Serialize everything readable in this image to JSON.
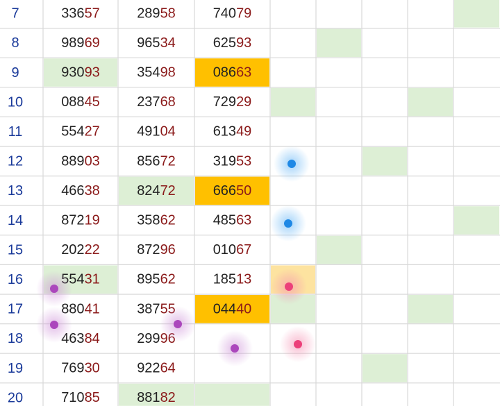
{
  "table": {
    "rows": [
      {
        "n": "7",
        "cells": [
          [
            "336",
            "57"
          ],
          [
            "289",
            "58"
          ],
          [
            "740",
            "79"
          ]
        ]
      },
      {
        "n": "8",
        "cells": [
          [
            "989",
            "69"
          ],
          [
            "965",
            "34"
          ],
          [
            "625",
            "93"
          ]
        ]
      },
      {
        "n": "9",
        "cells": [
          [
            "930",
            "93"
          ],
          [
            "354",
            "98"
          ],
          [
            "086",
            "63"
          ]
        ]
      },
      {
        "n": "10",
        "cells": [
          [
            "088",
            "45"
          ],
          [
            "237",
            "68"
          ],
          [
            "729",
            "29"
          ]
        ]
      },
      {
        "n": "11",
        "cells": [
          [
            "554",
            "27"
          ],
          [
            "491",
            "04"
          ],
          [
            "613",
            "49"
          ]
        ]
      },
      {
        "n": "12",
        "cells": [
          [
            "889",
            "03"
          ],
          [
            "856",
            "72"
          ],
          [
            "319",
            "53"
          ]
        ]
      },
      {
        "n": "13",
        "cells": [
          [
            "466",
            "38"
          ],
          [
            "824",
            "72"
          ],
          [
            "666",
            "50"
          ]
        ]
      },
      {
        "n": "14",
        "cells": [
          [
            "872",
            "19"
          ],
          [
            "358",
            "62"
          ],
          [
            "485",
            "63"
          ]
        ]
      },
      {
        "n": "15",
        "cells": [
          [
            "202",
            "22"
          ],
          [
            "872",
            "96"
          ],
          [
            "010",
            "67"
          ]
        ]
      },
      {
        "n": "16",
        "cells": [
          [
            "554",
            "31"
          ],
          [
            "895",
            "62"
          ],
          [
            "185",
            "13"
          ]
        ]
      },
      {
        "n": "17",
        "cells": [
          [
            "880",
            "41"
          ],
          [
            "387",
            "55"
          ],
          [
            "044",
            "40"
          ]
        ]
      },
      {
        "n": "18",
        "cells": [
          [
            "463",
            "84"
          ],
          [
            "299",
            "96"
          ]
        ]
      },
      {
        "n": "19",
        "cells": [
          [
            "769",
            "30"
          ],
          [
            "922",
            "64"
          ]
        ]
      },
      {
        "n": "20",
        "cells": [
          [
            "710",
            "85"
          ],
          [
            "881",
            "82"
          ]
        ]
      }
    ]
  }
}
